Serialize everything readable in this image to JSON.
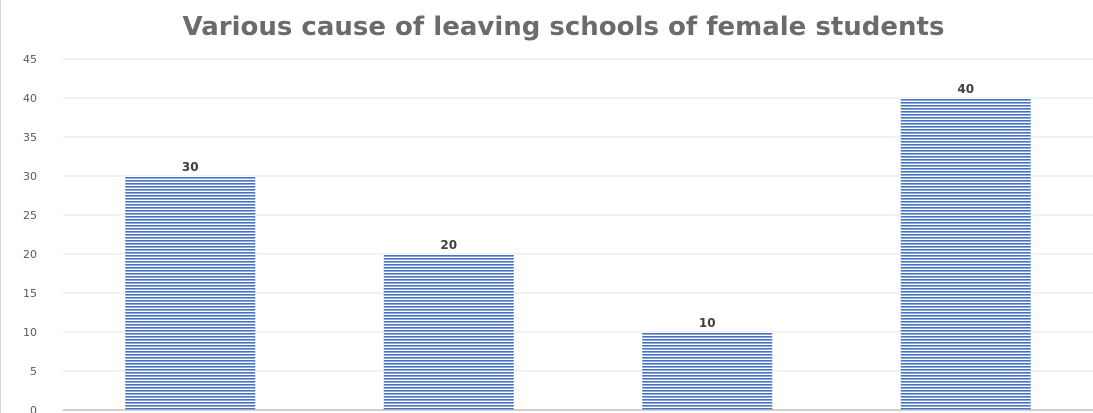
{
  "chart_data": {
    "type": "bar",
    "title": "Various cause of leaving schools of female students",
    "xlabel": "",
    "ylabel": "",
    "categories": [
      "",
      "",
      "",
      ""
    ],
    "values": [
      30,
      20,
      10,
      40
    ],
    "data_labels": [
      "30",
      "20",
      "10",
      "40"
    ],
    "ylim": [
      0,
      45
    ],
    "yticks": [
      0,
      5,
      10,
      15,
      20,
      25,
      30,
      35,
      40,
      45
    ],
    "ytick_labels": [
      "0",
      "5",
      "10",
      "15",
      "20",
      "25",
      "30",
      "35",
      "40",
      "45"
    ],
    "grid": true,
    "legend": "none",
    "bar_color": "#4472c4",
    "bar_pattern": "horizontal-stripes"
  }
}
